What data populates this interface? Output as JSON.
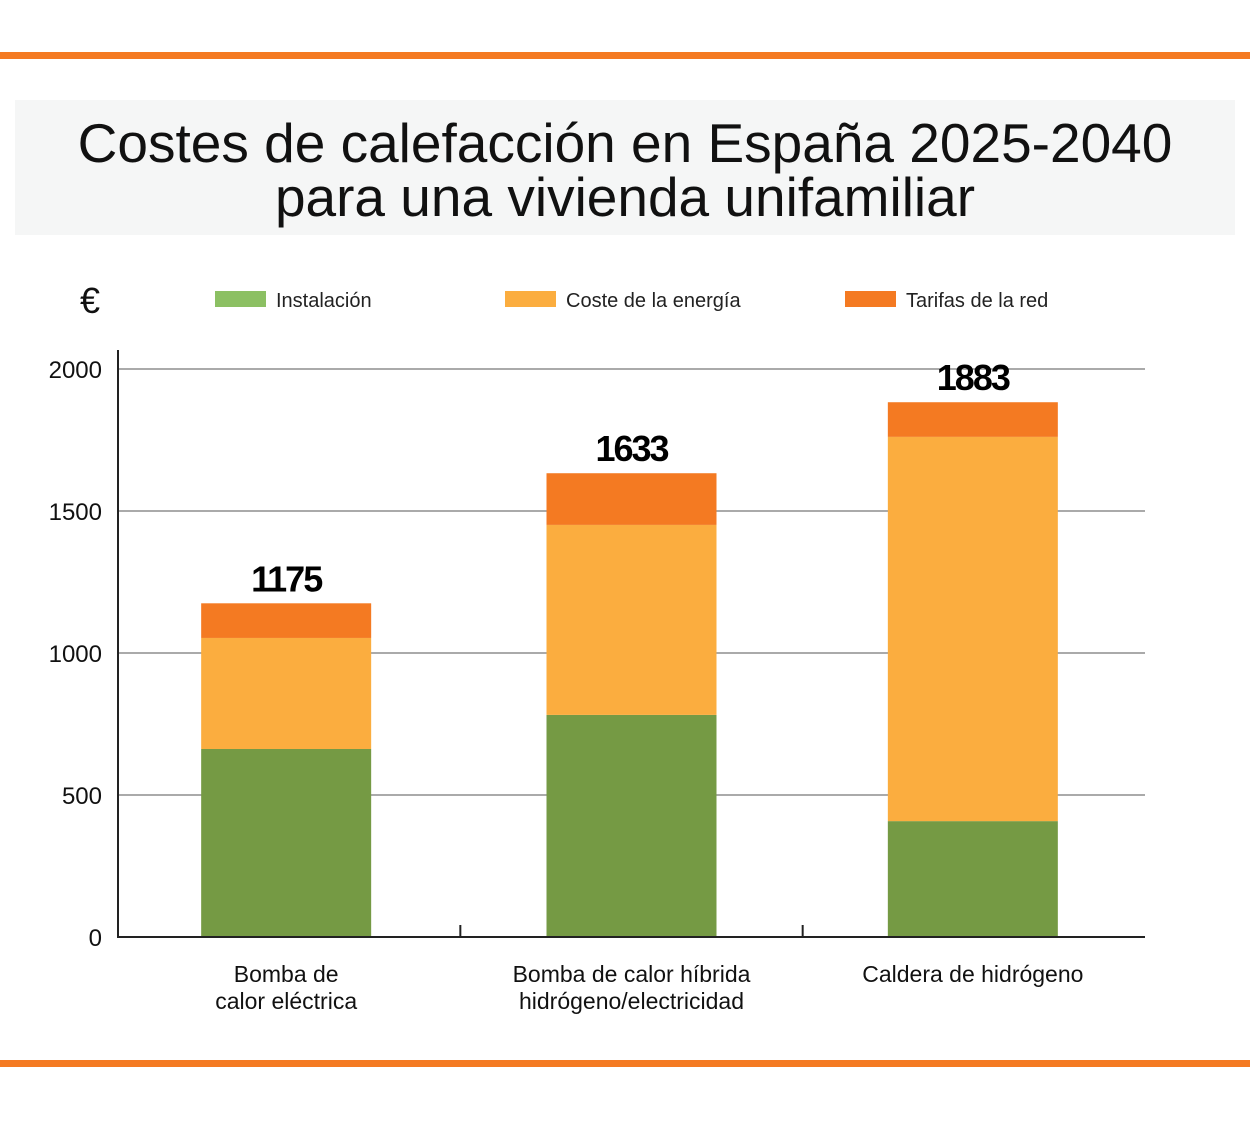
{
  "title_line1": "Costes de calefacción en España 2025-2040",
  "title_line2": "para una vivienda unifamiliar",
  "chart_data": {
    "type": "bar",
    "stacked": true,
    "ylabel": "€",
    "ylim": [
      0,
      2000
    ],
    "yticks": [
      0,
      500,
      1000,
      1500,
      2000
    ],
    "grid": true,
    "legend_position": "top",
    "categories": [
      [
        "Bomba de",
        "calor eléctrica"
      ],
      [
        "Bomba de calor híbrida",
        "hidrógeno/electricidad"
      ],
      [
        "Caldera de hidrógeno"
      ]
    ],
    "series": [
      {
        "name": "Instalación",
        "color": "#759a44",
        "legend_color": "#8cc063",
        "values": [
          662,
          782,
          408
        ]
      },
      {
        "name": "Coste de la energía",
        "color": "#fbad3f",
        "values": [
          391,
          669,
          1353
        ]
      },
      {
        "name": "Tarifas de la red",
        "color": "#f47a22",
        "values": [
          122,
          182,
          122
        ]
      }
    ],
    "totals": [
      1175,
      1633,
      1883
    ]
  },
  "colors": {
    "accent": "#f47a22"
  }
}
